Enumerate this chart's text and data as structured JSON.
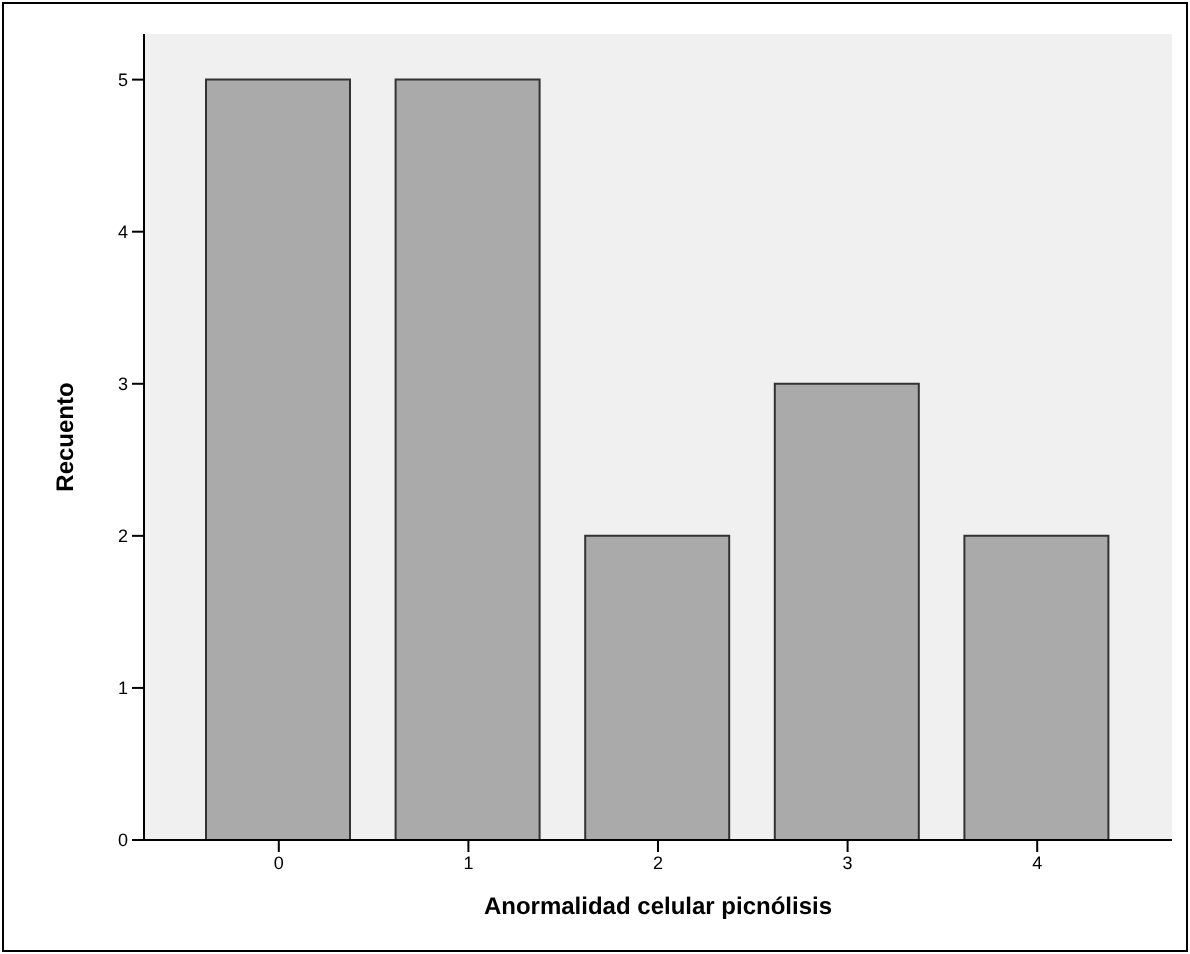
{
  "chart_data": {
    "type": "bar",
    "xlabel": "Anormalidad celular picnólisis",
    "ylabel": "Recuento",
    "categories": [
      "0",
      "1",
      "2",
      "3",
      "4"
    ],
    "values": [
      5,
      5,
      2,
      3,
      2
    ],
    "color": "#aaaaaa",
    "ylim": [
      0,
      5.3
    ],
    "yticks": [
      0,
      1,
      2,
      3,
      4,
      5
    ],
    "grid": false,
    "legend": false
  }
}
